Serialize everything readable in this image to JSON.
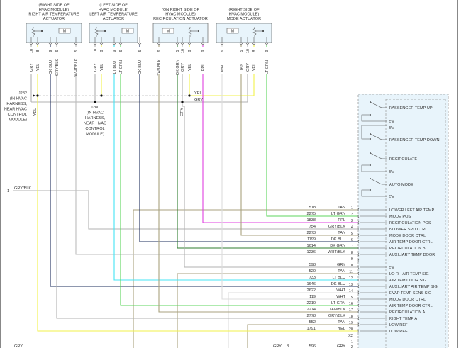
{
  "actuators": [
    {
      "title_lines": [
        "(RIGHT SIDE OF",
        "HVAC MODULE)",
        "RIGHT AIR TEMPERATURE",
        "ACTUATOR"
      ],
      "motor_label": "M",
      "pins": [
        {
          "num": "10",
          "color": "GRY"
        },
        {
          "num": "8",
          "color": "YEL"
        },
        {
          "num": "9",
          "color": "DK BLU"
        },
        {
          "num": "6",
          "color": "GRY/BLK"
        },
        {
          "num": "5",
          "color": "WHT/BLK"
        }
      ]
    },
    {
      "title_lines": [
        "(LEFT SIDE OF",
        "HVAC MODULE)",
        "LEFT AIR TEMPERATURE",
        "ACTUATOR"
      ],
      "motor_label": "M",
      "pins": [
        {
          "num": "10",
          "color": "GRY"
        },
        {
          "num": "8",
          "color": "YEL"
        },
        {
          "num": "9",
          "color": "LT BLU"
        },
        {
          "num": "6",
          "color": "LT GRN"
        },
        {
          "num": "5",
          "color": "DK BLU"
        }
      ]
    },
    {
      "title_lines": [
        "(ON RIGHT SIDE OF",
        "HVAC MODULE)",
        "RECIRCULATION ACTUATOR"
      ],
      "motor_label": "M",
      "pins": [
        {
          "num": "6",
          "color": "TAN/BLK"
        },
        {
          "num": "5",
          "color": "DK GRN"
        },
        {
          "num": "10",
          "color": "GRY"
        },
        {
          "num": "8",
          "color": "YEL"
        },
        {
          "num": "9",
          "color": "PPL"
        }
      ]
    },
    {
      "title_lines": [
        "(RIGHT SIDE OF",
        "HVAC MODULE)",
        "MODE ACTUATOR"
      ],
      "motor_label": "M",
      "pins": [
        {
          "num": "6",
          "color": "WHT"
        },
        {
          "num": "5",
          "color": "TAN"
        },
        {
          "num": "10",
          "color": "GRY"
        },
        {
          "num": "8",
          "color": "YEL"
        },
        {
          "num": "9",
          "color": "LT GRN"
        }
      ]
    }
  ],
  "junctions": {
    "j282": {
      "lines": [
        "J282",
        "(IN HVAC",
        "HARNESS,",
        "NEAR HVAC",
        "CONTROL",
        "MODULE)"
      ],
      "wire_below": "YEL"
    },
    "j280": {
      "lines": [
        "J280",
        "(IN HVAC",
        "HARNESS,",
        "NEAR HVAC",
        "CONTROL",
        "MODULE)"
      ]
    },
    "yel_label": "YEL",
    "gry_label": "GRY",
    "gry_vertical": "GRY"
  },
  "left": {
    "pin": "1",
    "wire": "GRY/BLK",
    "bottom_wire": "GRY"
  },
  "switches": [
    {
      "label": "PASSENGER TEMP UP"
    },
    {
      "label": "5V"
    },
    {
      "label": "5V"
    },
    {
      "label": "PASSENGER TEMP DOWN"
    },
    {
      "label": "RECIRCULATE"
    },
    {
      "label": "5V"
    },
    {
      "label": "AUTO MODE"
    },
    {
      "label": "5V"
    }
  ],
  "connector": {
    "rows": [
      {
        "circuit": "518",
        "color": "TAN",
        "pin": "1",
        "function": "LOWER LEFT AIR TEMP"
      },
      {
        "circuit": "2275",
        "color": "LT GRN",
        "pin": "2",
        "function": "MODE POS"
      },
      {
        "circuit": "1838",
        "color": "PPL",
        "pin": "3",
        "function": "RECIRCULATION POS"
      },
      {
        "circuit": "754",
        "color": "GRY/BLK",
        "pin": "4",
        "function": "BLOWER SPD CTRL"
      },
      {
        "circuit": "2273",
        "color": "TAN",
        "pin": "5",
        "function": "MODE DOOR CTRL"
      },
      {
        "circuit": "1199",
        "color": "DK BLU",
        "pin": "6",
        "function": "AIR TEMP DOOR CTRL"
      },
      {
        "circuit": "1614",
        "color": "DK GRN",
        "pin": "7",
        "function": "RECIRCULATION B"
      },
      {
        "circuit": "1236",
        "color": "WHT/BLK",
        "pin": "8",
        "function": "AUXILIARY TEMP DOOR"
      },
      {
        "circuit": "",
        "color": "",
        "pin": "9",
        "function": ""
      },
      {
        "circuit": "598",
        "color": "GRY",
        "pin": "10",
        "function": "5V"
      },
      {
        "circuit": "520",
        "color": "TAN",
        "pin": "11",
        "function": "LO RH AIR TEMP SIG"
      },
      {
        "circuit": "733",
        "color": "LT BLU",
        "pin": "12",
        "function": "AIR TEM DOOR SIG"
      },
      {
        "circuit": "1646",
        "color": "DK BLU",
        "pin": "13",
        "function": "AUXILIARY AIR TEMP SIG"
      },
      {
        "circuit": "2622",
        "color": "WHT",
        "pin": "14",
        "function": "EVAP TEMP SENS SIG"
      },
      {
        "circuit": "119",
        "color": "WHT",
        "pin": "15",
        "function": "MODE DOOR CTRL"
      },
      {
        "circuit": "2210",
        "color": "LT GRN",
        "pin": "16",
        "function": "AIR TEMP DOOR CTRL"
      },
      {
        "circuit": "2274",
        "color": "TAN/BLK",
        "pin": "17",
        "function": "RECIRCULATION A"
      },
      {
        "circuit": "2778",
        "color": "GRY/BLK",
        "pin": "18",
        "function": "RIGHT TEMP A"
      },
      {
        "circuit": "552",
        "color": "TAN",
        "pin": "19",
        "function": "LOW REF"
      },
      {
        "circuit": "1791",
        "color": "YEL",
        "pin": "20",
        "function": "LOW REF"
      }
    ],
    "x2_label": "X2",
    "x2_rows": [
      {
        "circuit": "",
        "color": "",
        "pin": "1"
      },
      {
        "circuit": "596",
        "color": "GRY",
        "pin": "2",
        "left_wire": "GRY",
        "left_pin": "8"
      }
    ]
  },
  "wire_colors": {
    "TAN": "#a9a27f",
    "LT GRN": "#5cd65c",
    "PPL": "#e040e0",
    "GRY/BLK": "#b0b0b0",
    "DK BLU": "#1e2f5e",
    "DK GRN": "#2f7d2f",
    "WHT/BLK": "#bdbdbd",
    "GRY": "#b0b0b0",
    "LT BLU": "#44e4f4",
    "WHT": "#dcdcdc",
    "YEL": "#f2f24a",
    "TAN/BLK": "#a9a27f"
  },
  "module_fill": "#e8f4fb"
}
